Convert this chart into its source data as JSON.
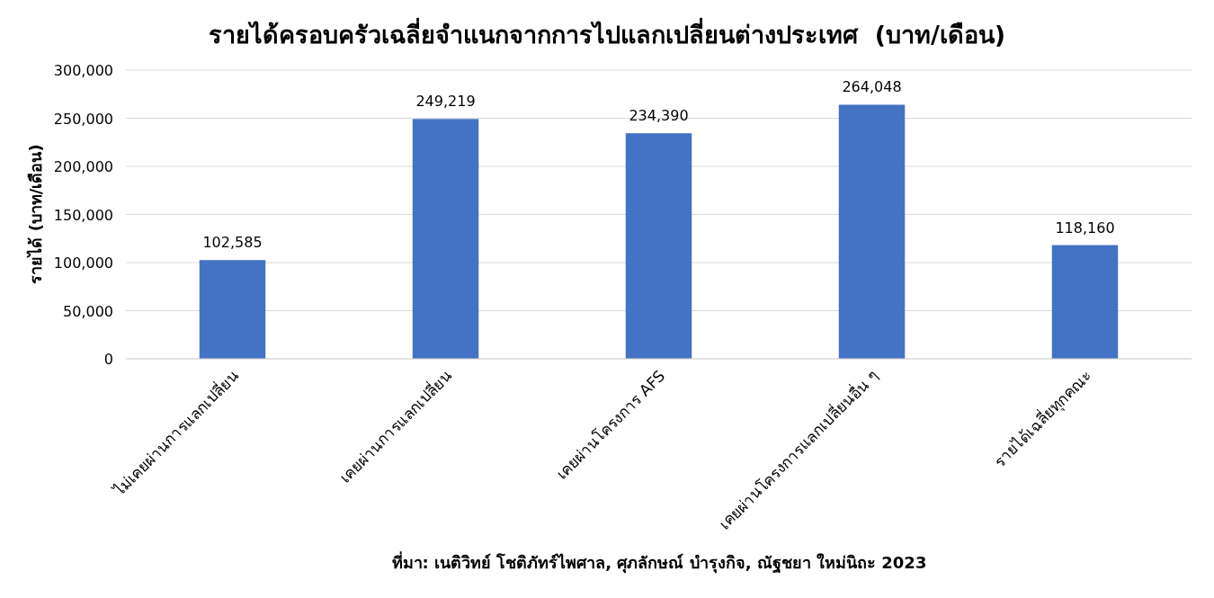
{
  "chart_data": {
    "type": "bar",
    "title": "รายได้ครอบครัวเฉลี่ยจำแนกจากการไปแลกเปลี่ยนต่างประเทศ  (บาท/เดือน)",
    "ylabel": "รายได้ (บาท/เดือน)",
    "categories": [
      "ไม่เคยผ่านการแลกเปลี่ยน",
      "เคยผ่านการแลกเปลี่ยน",
      "เคยผ่านโครงการ AFS",
      "เคยผ่านโครงการแลกเปลี่ยนอื่น ๆ",
      "รายได้เฉลี่ยทุกคณะ"
    ],
    "values": [
      102585,
      249219,
      234390,
      264048,
      118160
    ],
    "value_labels": [
      "102,585",
      "249,219",
      "234,390",
      "264,048",
      "118,160"
    ],
    "color": "#4472c4",
    "grid": "y",
    "ylim": [
      0,
      300000
    ],
    "yticks": [
      {
        "value": 0,
        "label": "0"
      },
      {
        "value": 50000,
        "label": "50,000"
      },
      {
        "value": 100000,
        "label": "100,000"
      },
      {
        "value": 150000,
        "label": "150,000"
      },
      {
        "value": 200000,
        "label": "200,000"
      },
      {
        "value": 250000,
        "label": "250,000"
      },
      {
        "value": 300000,
        "label": "300,000"
      }
    ],
    "annotations": [
      "ที่มา: เนติวิทย์ โชติภัทร์ไพศาล, ศุภลักษณ์ บำรุงกิจ, ณัฐชยา ใหม่นิถะ 2023"
    ]
  }
}
